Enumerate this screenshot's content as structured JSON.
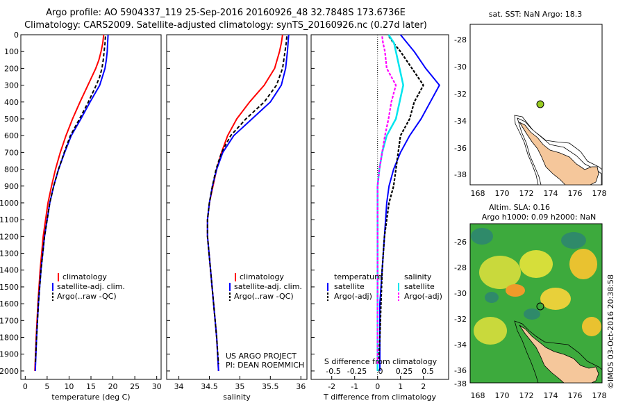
{
  "header": {
    "line1": "Argo profile: AO 5904337_119 25-Sep-2016 20160926_48 32.7848S 173.6736E",
    "line2": "Climatology: CARS2009. Satellite-adjusted climatology: synTS_20160926.nc (0.27d later)"
  },
  "depth_ticks": [
    "0",
    "100",
    "200",
    "300",
    "400",
    "500",
    "600",
    "700",
    "800",
    "900",
    "1000",
    "1100",
    "1200",
    "1300",
    "1400",
    "1500",
    "1600",
    "1700",
    "1800",
    "1900",
    "2000"
  ],
  "colors": {
    "climatology": "#ff0000",
    "satellite": "#0000ff",
    "argo": "#000000",
    "cyan": "#00e5ee",
    "magenta": "#ff00ff",
    "land": "#f5c79b"
  },
  "panels": {
    "temperature": {
      "xlabel": "temperature (deg C)",
      "xticks": [
        "0",
        "5",
        "10",
        "15",
        "20",
        "25",
        "30"
      ],
      "legend": [
        "climatology",
        "satellite-adj. clim.",
        "Argo(..raw -QC)"
      ]
    },
    "salinity": {
      "xlabel": "salinity",
      "xticks": [
        "34",
        "34.5",
        "35",
        "35.5",
        "36"
      ],
      "legend": [
        "climatology",
        "satellite-adj. clim.",
        "Argo(..raw -QC)"
      ],
      "credit1": "US ARGO PROJECT",
      "credit2": "PI: DEAN ROEMMICH"
    },
    "difference": {
      "xlabel": "T difference from climatology",
      "xticks": [
        "-2",
        "-1",
        "0",
        "1",
        "2"
      ],
      "stitle": "S difference from climatology",
      "sticks": [
        "-0.5",
        "-0.25",
        "0",
        "0.25",
        "0.5"
      ],
      "leg_t_title": "temperature",
      "leg_s_title": "salinity",
      "leg_t1": "satellite",
      "leg_t2": "Argo(-adj)",
      "leg_s1": "satellite",
      "leg_s2": "Argo(-adj)"
    },
    "map_sst": {
      "title": "sat. SST: NaN Argo: 18.3",
      "yticks": [
        "-28",
        "-30",
        "-32",
        "-34",
        "-36",
        "-38"
      ],
      "xticks": [
        "168",
        "170",
        "172",
        "174",
        "176",
        "178"
      ]
    },
    "map_sla": {
      "title1": "Altim. SLA: 0.16",
      "title2": "Argo h1000: 0.09 h2000: NaN",
      "yticks": [
        "-26",
        "-28",
        "-30",
        "-32",
        "-34",
        "-36",
        "-38"
      ],
      "xticks": [
        "168",
        "170",
        "172",
        "174",
        "176",
        "178"
      ]
    }
  },
  "stamp": "©IMOS 03-Oct-2016 20:38:58",
  "chart_data": [
    {
      "type": "line",
      "panel": "temperature",
      "xlabel": "temperature (deg C)",
      "ylabel": "",
      "xlim": [
        -1,
        31
      ],
      "ylim": [
        2050,
        0
      ],
      "series": [
        {
          "name": "climatology",
          "depth": [
            0,
            50,
            100,
            150,
            200,
            300,
            400,
            500,
            600,
            700,
            800,
            900,
            1000,
            1200,
            1400,
            1600,
            1800,
            2000
          ],
          "values": [
            17.9,
            17.7,
            17.3,
            16.8,
            16.1,
            14.3,
            12.5,
            10.8,
            9.3,
            8.0,
            6.9,
            6.0,
            5.2,
            4.1,
            3.4,
            2.9,
            2.5,
            2.2
          ]
        },
        {
          "name": "satellite-adj. clim.",
          "depth": [
            0,
            50,
            100,
            150,
            200,
            300,
            400,
            500,
            600,
            700,
            800,
            900,
            1000,
            1200,
            1400,
            1600,
            1800,
            2000
          ],
          "values": [
            18.9,
            18.8,
            18.7,
            18.5,
            18.2,
            17.0,
            14.8,
            12.7,
            10.5,
            9.0,
            7.6,
            6.5,
            5.6,
            4.4,
            3.6,
            3.0,
            2.6,
            2.3
          ]
        },
        {
          "name": "Argo(..raw -QC)",
          "depth": [
            10,
            50,
            100,
            150,
            200,
            250,
            300,
            350,
            400,
            500,
            600,
            700,
            800,
            900,
            1000,
            1200,
            1400,
            1600,
            1800,
            1960
          ],
          "values": [
            18.3,
            18.2,
            18.0,
            17.8,
            17.5,
            17.0,
            16.2,
            15.3,
            14.4,
            12.4,
            10.3,
            8.9,
            7.6,
            6.5,
            5.6,
            4.4,
            3.6,
            3.0,
            2.6,
            2.3
          ]
        }
      ]
    },
    {
      "type": "line",
      "panel": "salinity",
      "xlabel": "salinity",
      "ylabel": "",
      "xlim": [
        33.8,
        36.1
      ],
      "ylim": [
        2050,
        0
      ],
      "series": [
        {
          "name": "climatology",
          "depth": [
            0,
            50,
            100,
            200,
            300,
            400,
            500,
            600,
            700,
            800,
            900,
            1000,
            1100,
            1200,
            1400,
            1600,
            1800,
            2000
          ],
          "values": [
            35.7,
            35.68,
            35.65,
            35.57,
            35.4,
            35.16,
            34.95,
            34.8,
            34.7,
            34.62,
            34.56,
            34.5,
            34.47,
            34.47,
            34.52,
            34.57,
            34.62,
            34.65
          ]
        },
        {
          "name": "satellite-adj. clim.",
          "depth": [
            0,
            50,
            100,
            200,
            300,
            400,
            500,
            600,
            700,
            800,
            900,
            1000,
            1100,
            1200,
            1400,
            1600,
            1800,
            2000
          ],
          "values": [
            35.8,
            35.79,
            35.78,
            35.75,
            35.68,
            35.5,
            35.2,
            34.9,
            34.72,
            34.62,
            34.55,
            34.5,
            34.47,
            34.47,
            34.52,
            34.57,
            34.62,
            34.65
          ]
        },
        {
          "name": "Argo(..raw -QC)",
          "depth": [
            10,
            50,
            100,
            200,
            300,
            400,
            500,
            600,
            700,
            800,
            900,
            1000,
            1100,
            1200,
            1400,
            1600,
            1800,
            1960
          ],
          "values": [
            35.77,
            35.76,
            35.74,
            35.7,
            35.6,
            35.4,
            35.1,
            34.85,
            34.7,
            34.61,
            34.55,
            34.5,
            34.47,
            34.47,
            34.52,
            34.57,
            34.62,
            34.65
          ]
        }
      ]
    },
    {
      "type": "line",
      "panel": "difference",
      "xlabel": "T difference from climatology",
      "ylabel": "",
      "xlim": [
        -2.9,
        3.1
      ],
      "ylim": [
        2050,
        0
      ],
      "series": [
        {
          "name": "satellite",
          "quantity": "temperature",
          "depth": [
            0,
            50,
            100,
            200,
            300,
            400,
            500,
            600,
            700,
            800,
            900,
            1000,
            1200,
            1400,
            1600,
            1800,
            2000
          ],
          "values": [
            1.0,
            1.3,
            1.6,
            2.1,
            2.7,
            2.3,
            1.9,
            1.4,
            1.0,
            0.7,
            0.5,
            0.4,
            0.3,
            0.2,
            0.1,
            0.1,
            0.1
          ]
        },
        {
          "name": "Argo(-adj)",
          "quantity": "temperature",
          "depth": [
            10,
            50,
            100,
            200,
            300,
            400,
            500,
            600,
            700,
            800,
            900,
            1000,
            1200,
            1400,
            1600,
            1800,
            1960
          ],
          "values": [
            0.5,
            0.7,
            1.0,
            1.5,
            2.0,
            1.6,
            1.4,
            1.0,
            0.9,
            0.8,
            0.7,
            0.5,
            0.3,
            0.2,
            0.15,
            0.1,
            0.05
          ]
        },
        {
          "name": "satellite",
          "quantity": "salinity",
          "depth": [
            0,
            50,
            100,
            200,
            300,
            400,
            500,
            600,
            700,
            800,
            900,
            1000,
            1200,
            1400,
            1600,
            1800,
            2000
          ],
          "values": [
            0.12,
            0.18,
            0.2,
            0.24,
            0.28,
            0.24,
            0.2,
            0.1,
            0.05,
            0.02,
            0.0,
            0.0,
            0.0,
            0.0,
            0.0,
            0.0,
            0.0
          ]
        },
        {
          "name": "Argo(-adj)",
          "quantity": "salinity",
          "depth": [
            10,
            50,
            100,
            200,
            300,
            400,
            500,
            600,
            700,
            800,
            900,
            1000,
            1200,
            1400,
            1600,
            1800,
            1960
          ],
          "values": [
            0.05,
            0.06,
            0.08,
            0.1,
            0.2,
            0.15,
            0.12,
            0.08,
            0.05,
            0.02,
            0.0,
            0.0,
            0.0,
            0.0,
            0.0,
            0.0,
            0.0
          ]
        }
      ],
      "secondary_axis": {
        "label": "S difference from climatology",
        "ticks": [
          "-0.5",
          "-0.25",
          "0",
          "0.25",
          "0.5"
        ]
      }
    }
  ]
}
